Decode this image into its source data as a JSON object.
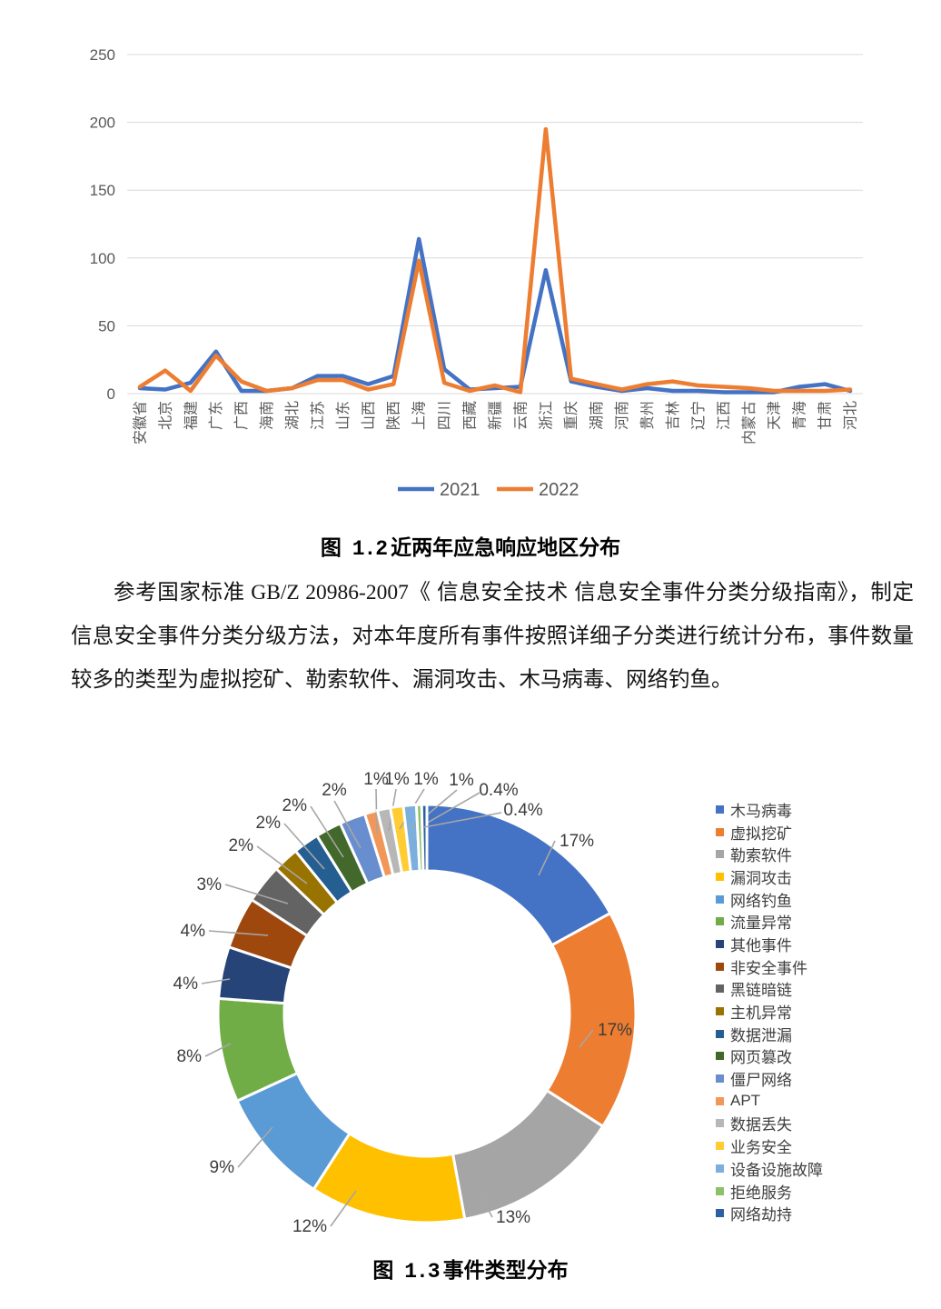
{
  "figures": {
    "fig12_prefix": "图 1.2",
    "fig12_title": "近两年应急响应地区分布",
    "fig13_prefix": "图 1.3",
    "fig13_title": "事件类型分布"
  },
  "paragraph": {
    "text": "参考国家标准 GB/Z 20986-2007《 信息安全技术 信息安全事件分类分级指南》，制定信息安全事件分类分级方法，对本年度所有事件按照详细子分类进行统计分布，事件数量较多的类型为虚拟挖矿、勒索软件、漏洞攻击、木马病毒、网络钓鱼。"
  },
  "chart_data": [
    {
      "type": "line",
      "title": "图 1.2 近两年应急响应地区分布",
      "categories": [
        "安徽省",
        "北京",
        "福建",
        "广东",
        "广西",
        "海南",
        "湖北",
        "江苏",
        "山东",
        "山西",
        "陕西",
        "上海",
        "四川",
        "西藏",
        "新疆",
        "云南",
        "浙江",
        "重庆",
        "湖南",
        "河南",
        "贵州",
        "吉林",
        "辽宁",
        "江西",
        "内蒙古",
        "天津",
        "青海",
        "甘肃",
        "河北"
      ],
      "series": [
        {
          "name": "2021",
          "color": "#4472C4",
          "values": [
            4,
            3,
            8,
            31,
            2,
            2,
            4,
            13,
            13,
            7,
            13,
            114,
            18,
            3,
            4,
            5,
            91,
            9,
            5,
            2,
            4,
            2,
            2,
            1,
            1,
            1,
            5,
            7,
            2
          ]
        },
        {
          "name": "2022",
          "color": "#ED7D31",
          "values": [
            5,
            17,
            2,
            28,
            9,
            2,
            4,
            10,
            10,
            3,
            7,
            98,
            8,
            2,
            6,
            1,
            195,
            11,
            7,
            3,
            7,
            9,
            6,
            5,
            4,
            2,
            2,
            2,
            3
          ]
        }
      ],
      "ylim": [
        0,
        250
      ],
      "yticks": [
        0,
        50,
        100,
        150,
        200,
        250
      ],
      "grid": true,
      "gridline_color": "#D9D9D9",
      "axis_label_color": "#595959",
      "legend_position": "bottom"
    },
    {
      "type": "pie",
      "donut": true,
      "title": "图 1.3 事件类型分布",
      "legend_position": "right",
      "slices": [
        {
          "label": "木马病毒",
          "pct": 17,
          "pct_label": "17%",
          "color": "#4472C4"
        },
        {
          "label": "虚拟挖矿",
          "pct": 17,
          "pct_label": "17%",
          "color": "#ED7D31"
        },
        {
          "label": "勒索软件",
          "pct": 13,
          "pct_label": "13%",
          "color": "#A5A5A5"
        },
        {
          "label": "漏洞攻击",
          "pct": 12,
          "pct_label": "12%",
          "color": "#FFC000"
        },
        {
          "label": "网络钓鱼",
          "pct": 9,
          "pct_label": "9%",
          "color": "#5B9BD5"
        },
        {
          "label": "流量异常",
          "pct": 8,
          "pct_label": "8%",
          "color": "#70AD47"
        },
        {
          "label": "其他事件",
          "pct": 4,
          "pct_label": "4%",
          "color": "#264478"
        },
        {
          "label": "非安全事件",
          "pct": 4,
          "pct_label": "4%",
          "color": "#9E480E"
        },
        {
          "label": "黑链暗链",
          "pct": 3,
          "pct_label": "3%",
          "color": "#636363"
        },
        {
          "label": "主机异常",
          "pct": 2,
          "pct_label": "2%",
          "color": "#997300"
        },
        {
          "label": "数据泄漏",
          "pct": 2,
          "pct_label": "2%",
          "color": "#255E91"
        },
        {
          "label": "网页篡改",
          "pct": 2,
          "pct_label": "2%",
          "color": "#43682B"
        },
        {
          "label": "僵尸网络",
          "pct": 2,
          "pct_label": "2%",
          "color": "#698ED0"
        },
        {
          "label": "APT",
          "pct": 1,
          "pct_label": "1%",
          "color": "#F1975A"
        },
        {
          "label": "数据丢失",
          "pct": 1,
          "pct_label": "1%",
          "color": "#B7B7B7"
        },
        {
          "label": "业务安全",
          "pct": 1,
          "pct_label": "1%",
          "color": "#FFCD33"
        },
        {
          "label": "设备设施故障",
          "pct": 1,
          "pct_label": "1%",
          "color": "#7CAFDD"
        },
        {
          "label": "拒绝服务",
          "pct": 0.4,
          "pct_label": "0.4%",
          "color": "#8CC168"
        },
        {
          "label": "网络劫持",
          "pct": 0.4,
          "pct_label": "0.4%",
          "color": "#2E5FA3"
        }
      ]
    }
  ]
}
